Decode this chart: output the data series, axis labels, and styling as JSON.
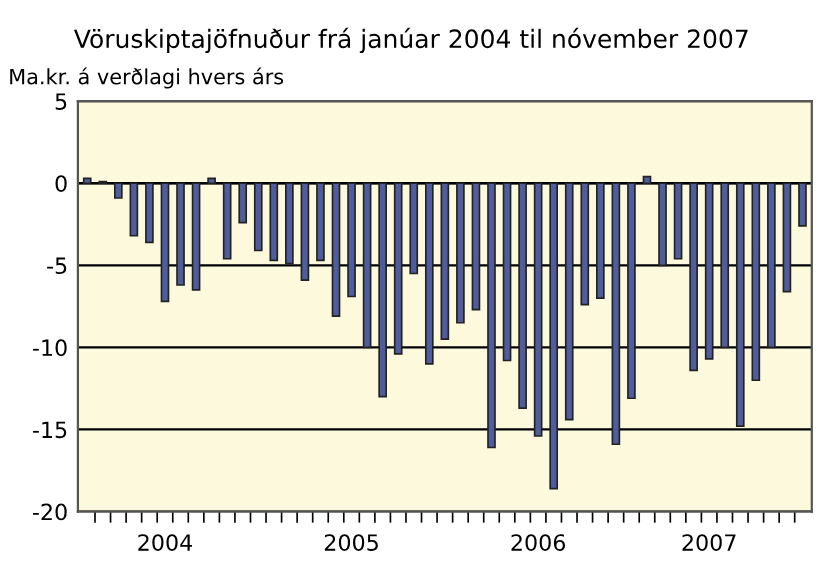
{
  "chart_data": {
    "type": "bar",
    "title": "Vöruskiptajöfnuður frá janúar 2004 til nóvember 2007",
    "ylabel": "Ma.kr. á verðlagi hvers árs",
    "categories": [
      null,
      null,
      null,
      null,
      null,
      "2004",
      null,
      null,
      null,
      null,
      null,
      null,
      null,
      null,
      null,
      null,
      null,
      "2005",
      null,
      null,
      null,
      null,
      null,
      null,
      null,
      null,
      null,
      null,
      null,
      "2006",
      null,
      null,
      null,
      null,
      null,
      null,
      null,
      null,
      null,
      null,
      "2007",
      null,
      null,
      null,
      null,
      null,
      null
    ],
    "values": [
      0.3,
      0.1,
      -0.9,
      -3.2,
      -3.6,
      -7.2,
      -6.2,
      -6.5,
      0.3,
      -4.6,
      -2.4,
      -4.1,
      -4.7,
      -4.9,
      -5.9,
      -4.7,
      -8.1,
      -6.9,
      -10.0,
      -13.0,
      -10.4,
      -5.5,
      -11.0,
      -9.5,
      -8.5,
      -7.7,
      -16.1,
      -10.8,
      -13.7,
      -15.4,
      -18.6,
      -14.4,
      -7.4,
      -7.0,
      -15.9,
      -13.1,
      0.4,
      -5.0,
      -4.6,
      -11.4,
      -10.7,
      -10.0,
      -14.8,
      -12.0,
      -10.0,
      -6.6,
      -2.6
    ],
    "color": "#4f5d9c",
    "ylim": [
      -20,
      5
    ],
    "yticks": [
      -20,
      -15,
      -10,
      -5,
      0,
      5
    ],
    "grid": "y"
  }
}
